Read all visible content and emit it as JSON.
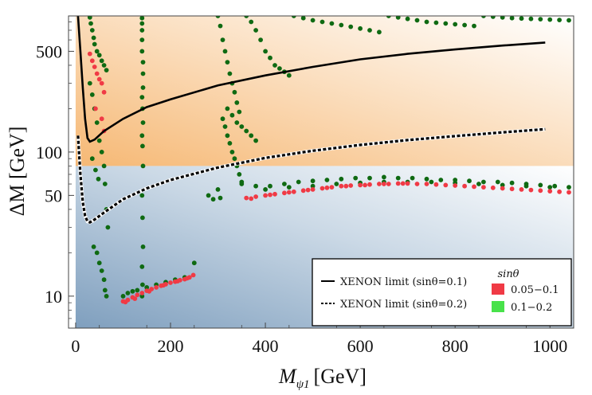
{
  "chart_data": {
    "type": "scatter",
    "xlabel": "M",
    "xlabel_sub": "ψ1",
    "xlabel_unit": "[GeV]",
    "ylabel": "ΔM [GeV]",
    "xlim": [
      -15,
      1050
    ],
    "ylim": [
      6,
      880
    ],
    "yscale": "log",
    "x_ticks": [
      0,
      200,
      400,
      600,
      800,
      1000
    ],
    "x_tick_labels": [
      "0",
      "200",
      "400",
      "600",
      "800",
      "1000"
    ],
    "y_ticks": [
      10,
      50,
      100,
      500
    ],
    "y_tick_labels": [
      "10",
      "50",
      "100",
      "500"
    ],
    "regions": [
      {
        "name": "upper-band",
        "y_from": 80,
        "y_to": 880,
        "x_from": 0,
        "x_to": 1050,
        "color": "#f6b874"
      },
      {
        "name": "lower-band",
        "y_from": 6,
        "y_to": 80,
        "x_from": 0,
        "x_to": 1050,
        "color": "#7f9fbe"
      }
    ],
    "lines": [
      {
        "name": "XENON limit (sinθ=0.1)",
        "style": "solid",
        "color": "#000000",
        "points": [
          [
            5,
            880
          ],
          [
            10,
            500
          ],
          [
            15,
            280
          ],
          [
            20,
            170
          ],
          [
            25,
            125
          ],
          [
            30,
            118
          ],
          [
            40,
            122
          ],
          [
            60,
            140
          ],
          [
            100,
            170
          ],
          [
            150,
            205
          ],
          [
            200,
            232
          ],
          [
            300,
            290
          ],
          [
            400,
            340
          ],
          [
            500,
            390
          ],
          [
            600,
            440
          ],
          [
            700,
            480
          ],
          [
            800,
            515
          ],
          [
            900,
            548
          ],
          [
            990,
            575
          ]
        ]
      },
      {
        "name": "XENON limit (sinθ=0.2)",
        "style": "dashed",
        "color": "#000000",
        "points": [
          [
            5,
            130
          ],
          [
            10,
            70
          ],
          [
            15,
            45
          ],
          [
            20,
            36
          ],
          [
            25,
            33
          ],
          [
            30,
            32.5
          ],
          [
            40,
            34
          ],
          [
            60,
            38
          ],
          [
            100,
            47
          ],
          [
            150,
            56
          ],
          [
            200,
            64
          ],
          [
            300,
            78
          ],
          [
            400,
            91
          ],
          [
            500,
            102
          ],
          [
            600,
            112
          ],
          [
            700,
            121
          ],
          [
            800,
            129
          ],
          [
            900,
            137
          ],
          [
            990,
            144
          ]
        ]
      }
    ],
    "series": [
      {
        "name": "0.05-0.1",
        "color": "#f03a45",
        "points": [
          [
            30,
            480
          ],
          [
            35,
            430
          ],
          [
            40,
            390
          ],
          [
            45,
            350
          ],
          [
            50,
            320
          ],
          [
            55,
            300
          ],
          [
            60,
            260
          ],
          [
            42,
            200
          ],
          [
            55,
            170
          ],
          [
            60,
            140
          ],
          [
            100,
            9.2
          ],
          [
            110,
            9.4
          ],
          [
            120,
            9.8
          ],
          [
            130,
            10.2
          ],
          [
            140,
            10.5
          ],
          [
            150,
            10.9
          ],
          [
            160,
            11.2
          ],
          [
            170,
            11.5
          ],
          [
            180,
            11.8
          ],
          [
            190,
            12.1
          ],
          [
            200,
            12.4
          ],
          [
            210,
            12.6
          ],
          [
            220,
            12.9
          ],
          [
            230,
            13.1
          ],
          [
            240,
            13.5
          ],
          [
            248,
            14.0
          ],
          [
            105,
            9.1
          ],
          [
            125,
            9.6
          ],
          [
            155,
            10.8
          ],
          [
            185,
            11.9
          ],
          [
            215,
            12.7
          ],
          [
            235,
            13.3
          ],
          [
            360,
            48
          ],
          [
            380,
            49
          ],
          [
            400,
            50
          ],
          [
            420,
            51
          ],
          [
            440,
            52
          ],
          [
            460,
            53
          ],
          [
            480,
            54
          ],
          [
            500,
            55
          ],
          [
            520,
            56
          ],
          [
            540,
            57
          ],
          [
            560,
            58
          ],
          [
            580,
            58.5
          ],
          [
            600,
            59
          ],
          [
            620,
            59.5
          ],
          [
            640,
            60
          ],
          [
            660,
            60
          ],
          [
            680,
            60.5
          ],
          [
            700,
            60.5
          ],
          [
            720,
            60
          ],
          [
            740,
            60
          ],
          [
            760,
            59.5
          ],
          [
            780,
            59
          ],
          [
            800,
            58.5
          ],
          [
            820,
            58
          ],
          [
            840,
            57.5
          ],
          [
            860,
            57
          ],
          [
            880,
            56.5
          ],
          [
            900,
            56
          ],
          [
            920,
            55.5
          ],
          [
            940,
            55
          ],
          [
            960,
            54.5
          ],
          [
            980,
            54
          ],
          [
            1000,
            53.5
          ],
          [
            1020,
            53
          ],
          [
            1040,
            52.5
          ],
          [
            370,
            47.5
          ],
          [
            410,
            50.5
          ],
          [
            450,
            52.5
          ],
          [
            490,
            54.5
          ],
          [
            530,
            56.5
          ],
          [
            570,
            58
          ],
          [
            610,
            59
          ],
          [
            650,
            60
          ],
          [
            690,
            60.5
          ]
        ]
      },
      {
        "name": "0.1-0.2",
        "color": "#48e24a",
        "render_color": "#0f6a12",
        "points": [
          [
            30,
            860
          ],
          [
            32,
            780
          ],
          [
            35,
            700
          ],
          [
            38,
            620
          ],
          [
            40,
            560
          ],
          [
            45,
            500
          ],
          [
            50,
            470
          ],
          [
            55,
            430
          ],
          [
            60,
            400
          ],
          [
            65,
            370
          ],
          [
            30,
            300
          ],
          [
            35,
            250
          ],
          [
            40,
            200
          ],
          [
            45,
            160
          ],
          [
            50,
            120
          ],
          [
            55,
            100
          ],
          [
            60,
            80
          ],
          [
            62,
            60
          ],
          [
            65,
            40
          ],
          [
            68,
            30
          ],
          [
            38,
            22
          ],
          [
            45,
            20
          ],
          [
            50,
            17
          ],
          [
            55,
            15
          ],
          [
            60,
            13
          ],
          [
            62,
            11
          ],
          [
            65,
            10
          ],
          [
            35,
            90
          ],
          [
            42,
            75
          ],
          [
            48,
            65
          ],
          [
            140,
            850
          ],
          [
            140,
            780
          ],
          [
            140,
            700
          ],
          [
            140,
            600
          ],
          [
            140,
            500
          ],
          [
            142,
            420
          ],
          [
            142,
            350
          ],
          [
            142,
            280
          ],
          [
            140,
            240
          ],
          [
            141,
            200
          ],
          [
            142,
            160
          ],
          [
            140,
            130
          ],
          [
            141,
            110
          ],
          [
            142,
            80
          ],
          [
            140,
            50
          ],
          [
            141,
            35
          ],
          [
            142,
            22
          ],
          [
            140,
            16
          ],
          [
            141,
            12
          ],
          [
            140,
            10
          ],
          [
            100,
            10
          ],
          [
            110,
            10.5
          ],
          [
            120,
            10.8
          ],
          [
            130,
            11
          ],
          [
            150,
            11.5
          ],
          [
            170,
            12
          ],
          [
            190,
            12.5
          ],
          [
            210,
            13
          ],
          [
            230,
            13.5
          ],
          [
            250,
            17
          ],
          [
            300,
            880
          ],
          [
            305,
            750
          ],
          [
            310,
            600
          ],
          [
            315,
            500
          ],
          [
            320,
            420
          ],
          [
            325,
            350
          ],
          [
            330,
            300
          ],
          [
            335,
            260
          ],
          [
            340,
            220
          ],
          [
            345,
            190
          ],
          [
            310,
            170
          ],
          [
            315,
            150
          ],
          [
            320,
            130
          ],
          [
            325,
            115
          ],
          [
            330,
            100
          ],
          [
            335,
            90
          ],
          [
            340,
            80
          ],
          [
            345,
            70
          ],
          [
            350,
            62
          ],
          [
            300,
            55
          ],
          [
            305,
            48
          ],
          [
            280,
            50
          ],
          [
            290,
            47
          ],
          [
            320,
            200
          ],
          [
            330,
            180
          ],
          [
            340,
            160
          ],
          [
            350,
            150
          ],
          [
            360,
            140
          ],
          [
            370,
            130
          ],
          [
            380,
            120
          ],
          [
            360,
            880
          ],
          [
            370,
            800
          ],
          [
            380,
            700
          ],
          [
            390,
            600
          ],
          [
            400,
            500
          ],
          [
            410,
            450
          ],
          [
            420,
            400
          ],
          [
            430,
            380
          ],
          [
            440,
            360
          ],
          [
            450,
            340
          ],
          [
            460,
            880
          ],
          [
            480,
            850
          ],
          [
            500,
            820
          ],
          [
            520,
            800
          ],
          [
            540,
            780
          ],
          [
            560,
            760
          ],
          [
            580,
            740
          ],
          [
            600,
            720
          ],
          [
            620,
            700
          ],
          [
            640,
            680
          ],
          [
            660,
            880
          ],
          [
            680,
            860
          ],
          [
            700,
            840
          ],
          [
            720,
            820
          ],
          [
            740,
            800
          ],
          [
            760,
            790
          ],
          [
            780,
            780
          ],
          [
            800,
            770
          ],
          [
            820,
            760
          ],
          [
            840,
            750
          ],
          [
            860,
            880
          ],
          [
            880,
            870
          ],
          [
            900,
            860
          ],
          [
            920,
            850
          ],
          [
            940,
            845
          ],
          [
            960,
            840
          ],
          [
            980,
            835
          ],
          [
            1000,
            830
          ],
          [
            1020,
            825
          ],
          [
            1040,
            820
          ],
          [
            350,
            60
          ],
          [
            380,
            58
          ],
          [
            410,
            58
          ],
          [
            440,
            60
          ],
          [
            470,
            62
          ],
          [
            500,
            63
          ],
          [
            530,
            64
          ],
          [
            560,
            65
          ],
          [
            590,
            66
          ],
          [
            620,
            66
          ],
          [
            650,
            67
          ],
          [
            680,
            66
          ],
          [
            710,
            66
          ],
          [
            740,
            65
          ],
          [
            770,
            64
          ],
          [
            800,
            64
          ],
          [
            830,
            63
          ],
          [
            860,
            62
          ],
          [
            890,
            62
          ],
          [
            920,
            61
          ],
          [
            950,
            60
          ],
          [
            980,
            59
          ],
          [
            1010,
            58
          ],
          [
            1040,
            57
          ],
          [
            400,
            55
          ],
          [
            450,
            57
          ],
          [
            500,
            58
          ],
          [
            550,
            60
          ],
          [
            600,
            61
          ],
          [
            650,
            62
          ],
          [
            700,
            62
          ],
          [
            750,
            62
          ],
          [
            800,
            61
          ],
          [
            850,
            60
          ],
          [
            900,
            59
          ],
          [
            950,
            58
          ],
          [
            1000,
            57
          ]
        ]
      }
    ]
  },
  "legend_lines": [
    {
      "label": "XENON limit (sinθ=0.1)",
      "style": "solid"
    },
    {
      "label": "XENON limit (sinθ=0.2)",
      "style": "dashed"
    }
  ],
  "legend_points_title": "sinθ",
  "legend_points": [
    {
      "label": "0.05−0.1",
      "color": "#f03a45"
    },
    {
      "label": "0.1−0.2",
      "color": "#48e24a"
    }
  ]
}
